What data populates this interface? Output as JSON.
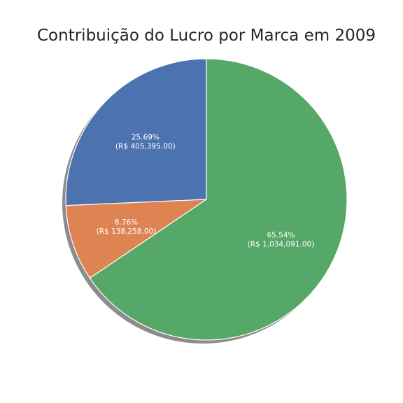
{
  "chart_data": {
    "type": "pie",
    "title": "Contribuição do Lucro por Marca em 2009",
    "start_angle_deg": 90,
    "direction": "counterclockwise",
    "shadow": true,
    "slices": [
      {
        "value": 405395.0,
        "percent_label": "25.69%",
        "value_label": "(R$ 405,395.00)",
        "color": "#4c72b0"
      },
      {
        "value": 138258.0,
        "percent_label": "8.76%",
        "value_label": "(R$ 138,258.00)",
        "color": "#dd8452"
      },
      {
        "value": 1034091.0,
        "percent_label": "65.54%",
        "value_label": "(R$ 1,034,091.00)",
        "color": "#55a868"
      }
    ]
  }
}
